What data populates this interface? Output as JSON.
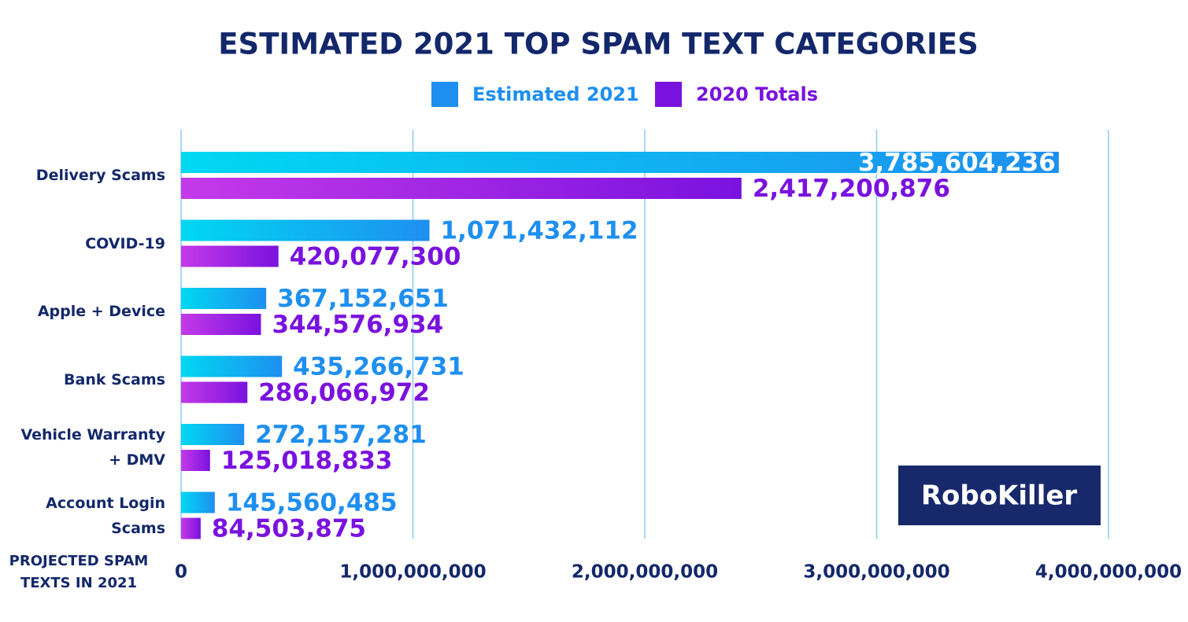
{
  "chart_data": {
    "type": "bar",
    "orientation": "horizontal",
    "title": "ESTIMATED 2021 TOP SPAM TEXT CATEGORIES",
    "x_label": "PROJECTED SPAM TEXTS IN 2021",
    "logo": "RoboKiller",
    "categories": [
      "Delivery Scams",
      "COVID-19",
      "Apple + Device",
      "Bank Scams",
      "Vehicle Warranty + DMV",
      "Account Login Scams"
    ],
    "series": [
      {
        "name": "Estimated 2021",
        "color": "#1e8ff0",
        "values": [
          3785604236,
          1071432112,
          367152651,
          435266731,
          272157281,
          145560485
        ],
        "value_labels": [
          "3,785,604,236",
          "1,071,432,112",
          "367,152,651",
          "435,266,731",
          "272,157,281",
          "145,560,485"
        ]
      },
      {
        "name": "2020 Totals",
        "color": "#7a12df",
        "values": [
          2417200876,
          420077300,
          344576934,
          286066972,
          125018833,
          84503875
        ],
        "value_labels": [
          "2,417,200,876",
          "420,077,300",
          "344,576,934",
          "286,066,972",
          "125,018,833",
          "84,503,875"
        ]
      }
    ],
    "xlim": [
      0,
      4000000000
    ],
    "xticks": [
      0,
      {
        "value": 1000000000,
        "label": "1,000,000,000"
      },
      {
        "value": 2000000000,
        "label": "2,000,000,000"
      },
      {
        "value": 3000000000,
        "label": "3,000,000,000"
      },
      {
        "value": 4000000000,
        "label": "4,000,000,000"
      }
    ],
    "grid": true
  }
}
